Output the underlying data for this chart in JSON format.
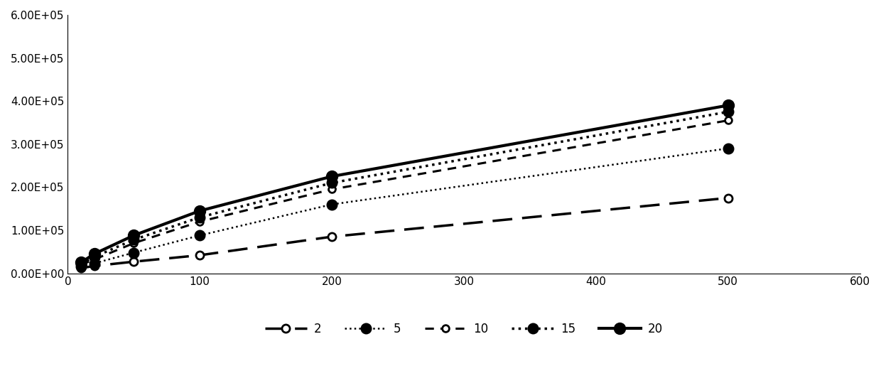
{
  "x": [
    10,
    20,
    50,
    100,
    200,
    500
  ],
  "series": {
    "2": [
      12000,
      17000,
      27000,
      42000,
      85000,
      175000
    ],
    "5": [
      16000,
      23000,
      48000,
      88000,
      160000,
      290000
    ],
    "10": [
      20000,
      32000,
      70000,
      120000,
      195000,
      355000
    ],
    "15": [
      22000,
      38000,
      78000,
      130000,
      210000,
      375000
    ],
    "20": [
      25000,
      45000,
      88000,
      145000,
      225000,
      390000
    ]
  },
  "line_styles": {
    "2": {
      "linestyle": "--",
      "marker": "o",
      "markersize": 8,
      "linewidth": 2.5,
      "markerfacecolor": "white",
      "markeredgecolor": "black",
      "markeredgewidth": 2.0,
      "dashes": [
        8,
        4
      ]
    },
    "5": {
      "linestyle": ":",
      "marker": "o",
      "markersize": 10,
      "linewidth": 1.8,
      "markerfacecolor": "black",
      "markeredgecolor": "black",
      "markeredgewidth": 1.5,
      "dashes": null
    },
    "10": {
      "linestyle": "--",
      "marker": "o",
      "markersize": 7,
      "linewidth": 2.2,
      "markerfacecolor": "white",
      "markeredgecolor": "black",
      "markeredgewidth": 2.0,
      "dashes": [
        4,
        3
      ]
    },
    "15": {
      "linestyle": ":",
      "marker": "o",
      "markersize": 10,
      "linewidth": 2.5,
      "markerfacecolor": "black",
      "markeredgecolor": "black",
      "markeredgewidth": 1.5,
      "dashes": null
    },
    "20": {
      "linestyle": "-",
      "marker": "o",
      "markersize": 11,
      "linewidth": 3.0,
      "markerfacecolor": "black",
      "markeredgecolor": "black",
      "markeredgewidth": 1.5,
      "dashes": null
    }
  },
  "legend_labels": [
    "2",
    "5",
    "10",
    "15",
    "20"
  ],
  "xlim": [
    0,
    600
  ],
  "ylim": [
    0,
    600000
  ],
  "yticks": [
    0,
    100000,
    200000,
    300000,
    400000,
    500000,
    600000
  ],
  "xticks": [
    0,
    100,
    200,
    300,
    400,
    500,
    600
  ],
  "color": "black",
  "figsize": [
    12.4,
    5.46
  ],
  "dpi": 100
}
